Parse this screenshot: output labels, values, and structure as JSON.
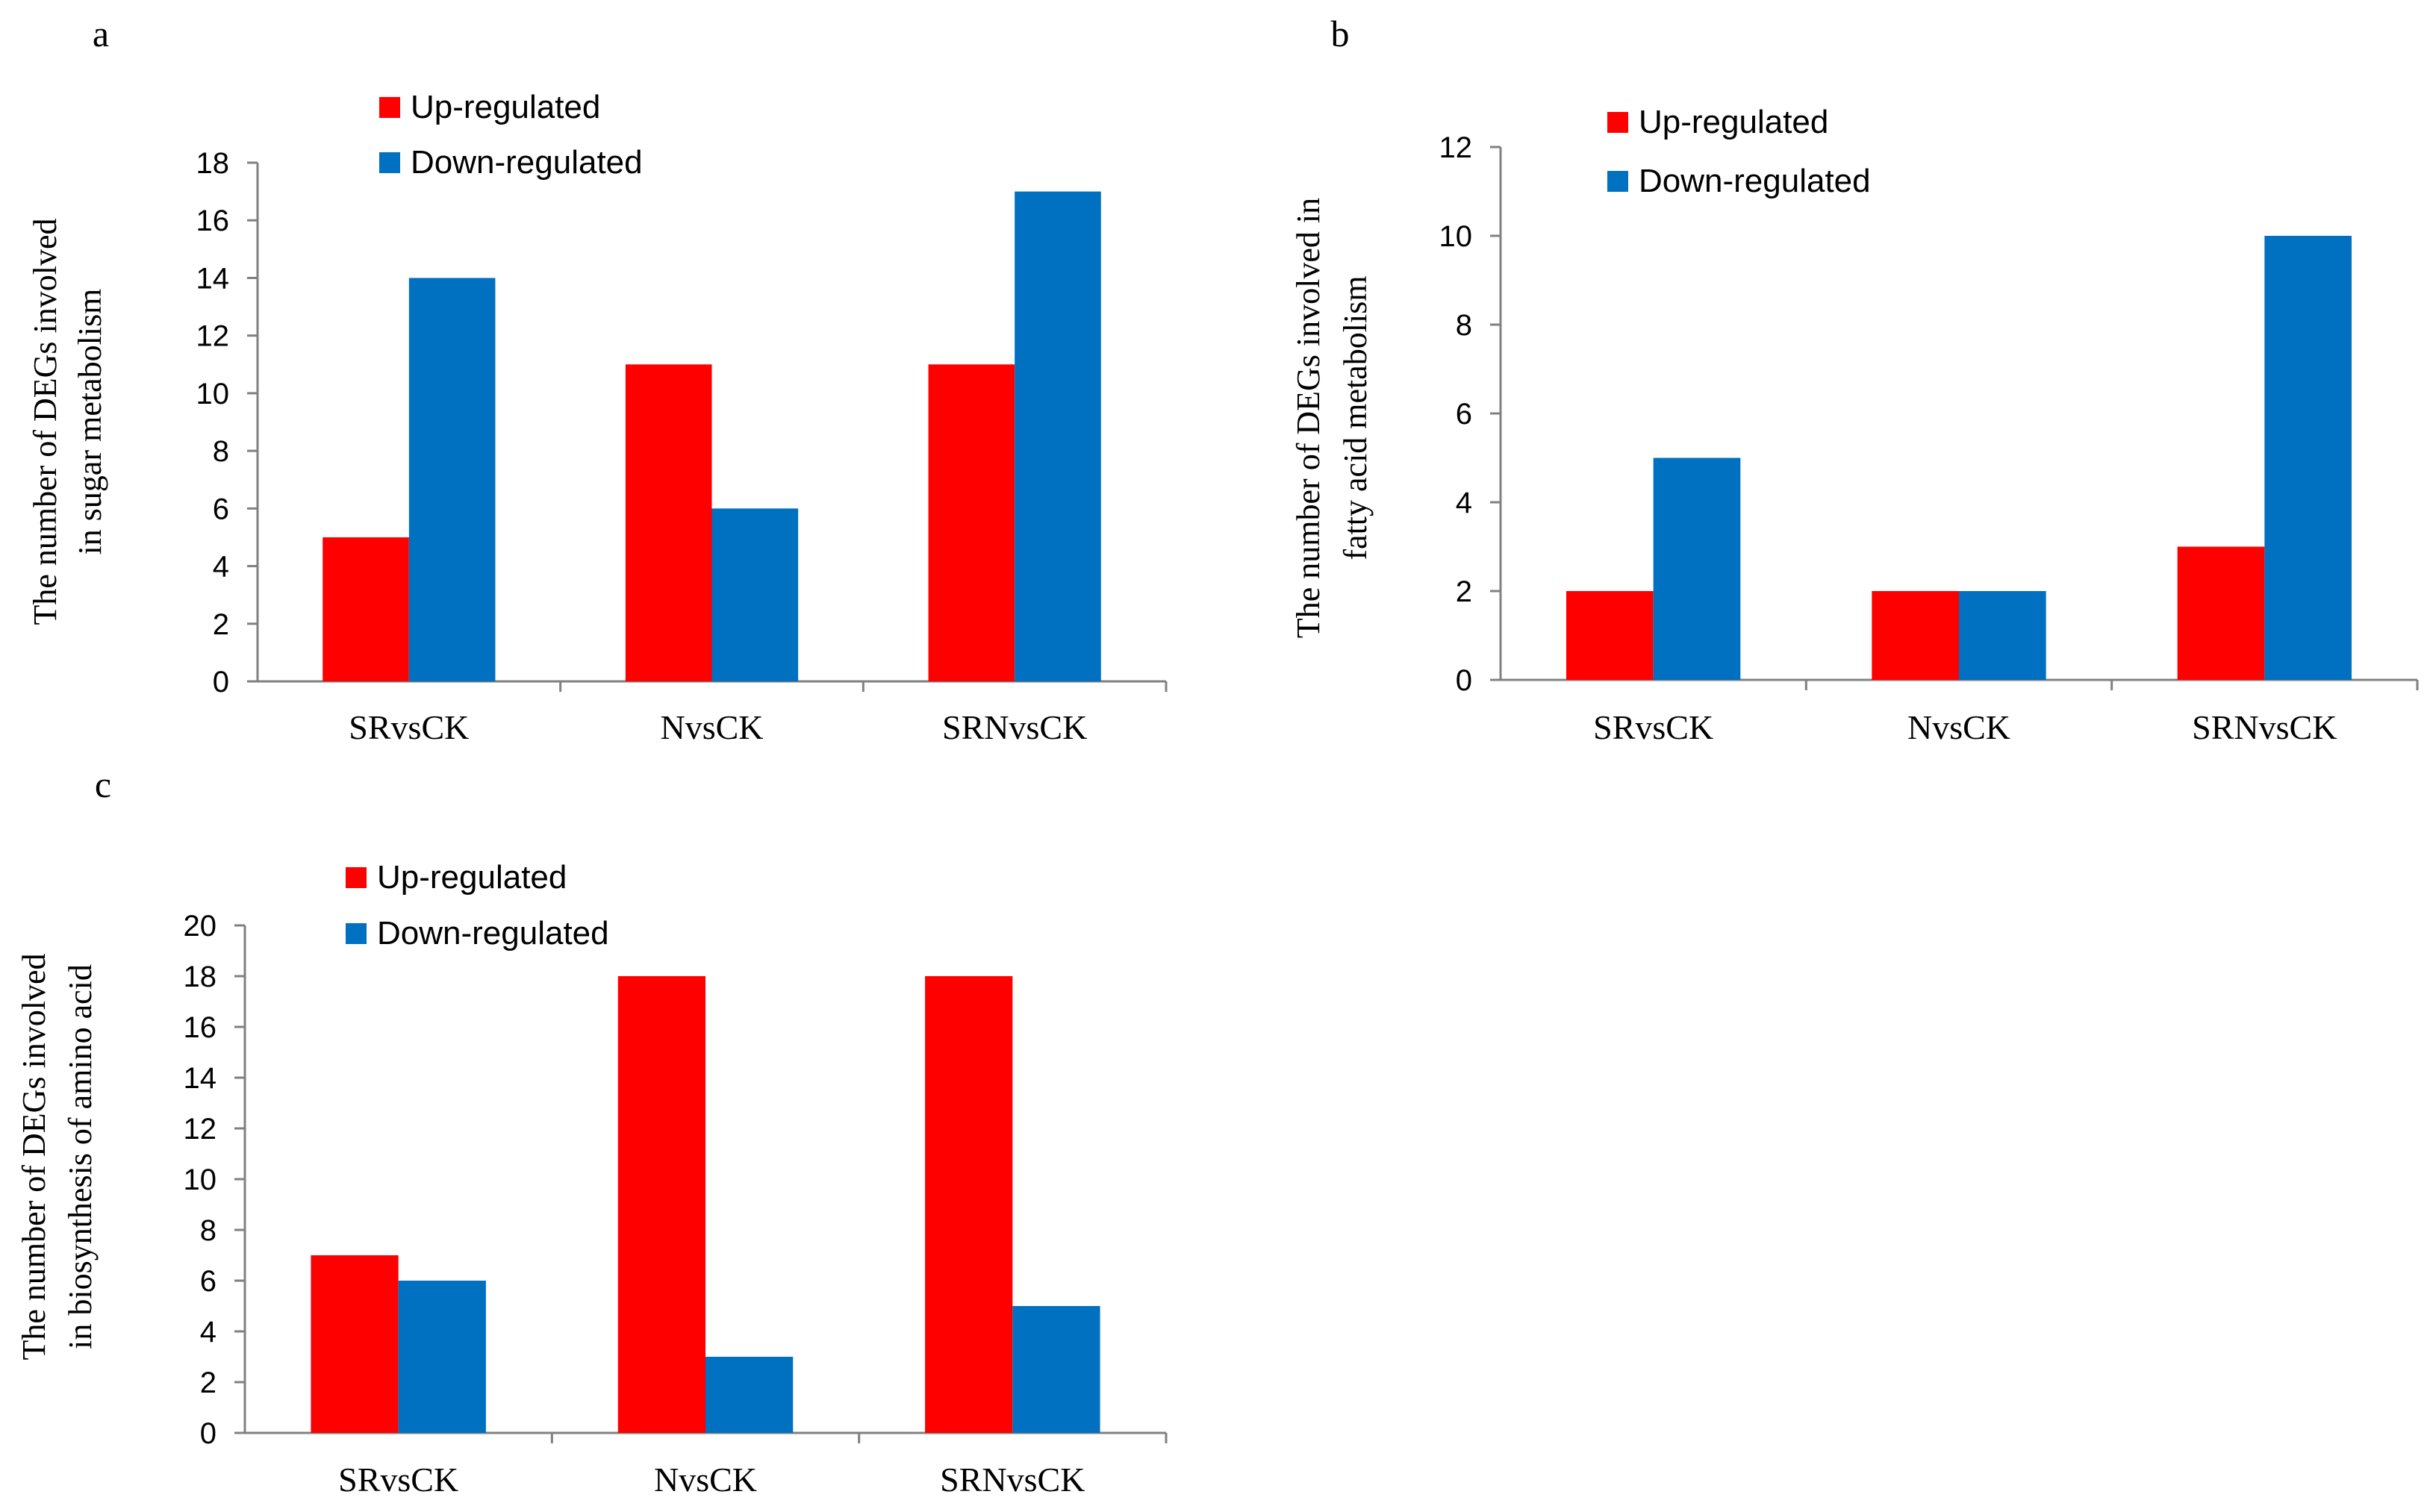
{
  "colors": {
    "up": "#ff0000",
    "down": "#0070c0",
    "axis": "#808080",
    "text": "#000000"
  },
  "chart_data": [
    {
      "panel_label": "a",
      "type": "bar",
      "categories": [
        "SRvsCK",
        "NvsCK",
        "SRNvsCK"
      ],
      "series": [
        {
          "name": "Up-regulated",
          "values": [
            5,
            11,
            11
          ]
        },
        {
          "name": "Down-regulated",
          "values": [
            14,
            6,
            17
          ]
        }
      ],
      "ylabel_lines": [
        "The number of DEGs involved",
        "in sugar metabolism"
      ],
      "ylim": [
        0,
        18
      ],
      "yticks": [
        0,
        2,
        4,
        6,
        8,
        10,
        12,
        14,
        16,
        18
      ],
      "legend_position": "top",
      "grid": false
    },
    {
      "panel_label": "b",
      "type": "bar",
      "categories": [
        "SRvsCK",
        "NvsCK",
        "SRNvsCK"
      ],
      "series": [
        {
          "name": "Up-regulated",
          "values": [
            2,
            2,
            3
          ]
        },
        {
          "name": "Down-regulated",
          "values": [
            5,
            2,
            10
          ]
        }
      ],
      "ylabel_lines": [
        "The number of DEGs involved in",
        "fatty acid metabolism"
      ],
      "ylim": [
        0,
        12
      ],
      "yticks": [
        0,
        2,
        4,
        6,
        8,
        10,
        12
      ],
      "legend_position": "top",
      "grid": false
    },
    {
      "panel_label": "c",
      "type": "bar",
      "categories": [
        "SRvsCK",
        "NvsCK",
        "SRNvsCK"
      ],
      "series": [
        {
          "name": "Up-regulated",
          "values": [
            7,
            18,
            18
          ]
        },
        {
          "name": "Down-regulated",
          "values": [
            6,
            3,
            5
          ]
        }
      ],
      "ylabel_lines": [
        "The number of DEGs involved",
        "in biosynthesis of amino acid"
      ],
      "ylim": [
        0,
        20
      ],
      "yticks": [
        0,
        2,
        4,
        6,
        8,
        10,
        12,
        14,
        16,
        18,
        20
      ],
      "legend_position": "top",
      "grid": false
    }
  ]
}
